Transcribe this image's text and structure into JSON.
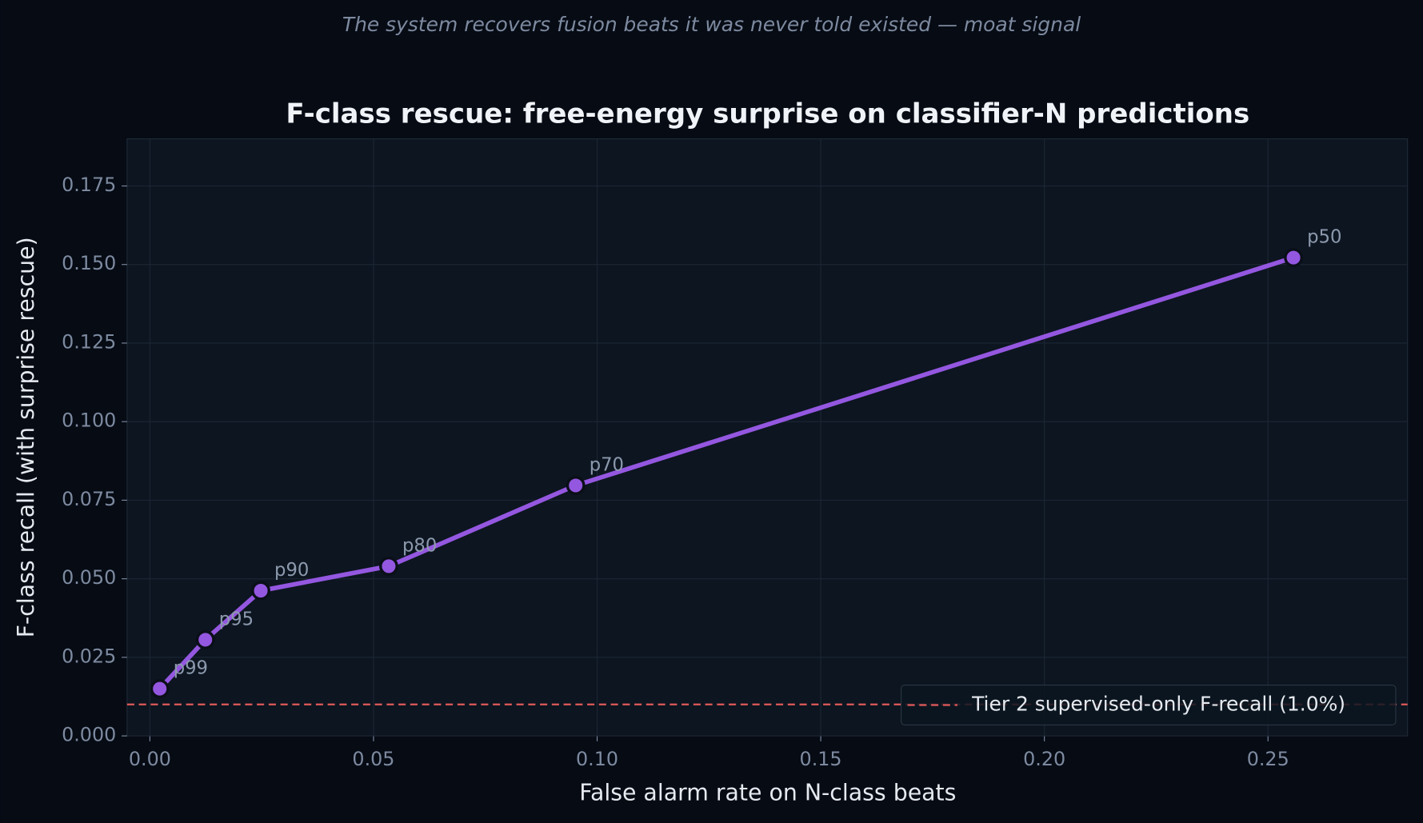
{
  "chart_data": {
    "type": "line",
    "subtitle": "The system recovers fusion beats it was never told existed — moat signal",
    "title": "F-class rescue: free-energy surprise on classifier-N predictions",
    "x_label": "False alarm rate on N-class beats",
    "y_label": "F-class recall (with surprise rescue)",
    "x": [
      0.0022,
      0.0124,
      0.0248,
      0.0534,
      0.0952,
      0.2557
    ],
    "values": [
      0.015,
      0.0306,
      0.0462,
      0.054,
      0.0797,
      0.1522
    ],
    "point_labels": [
      "p99",
      "p95",
      "p90",
      "p80",
      "p70",
      "p50"
    ],
    "color": "#9457e0",
    "reference_line": {
      "value": 0.01,
      "label": "Tier 2 supervised-only F-recall (1.0%)",
      "color": "#e05a5a"
    },
    "legend": "lower right",
    "grid": true,
    "xlim": [
      -0.0051,
      0.2812
    ],
    "ylim": [
      0,
      0.19
    ],
    "xticks": [
      {
        "value": 0,
        "label": "0.00"
      },
      0.05,
      {
        "value": 0.1,
        "label": "0.10"
      },
      0.15,
      {
        "value": 0.2,
        "label": "0.20"
      },
      0.25
    ],
    "yticks": [
      {
        "value": 0,
        "label": "0.000"
      },
      0.025,
      {
        "value": 0.05,
        "label": "0.050"
      },
      0.075,
      {
        "value": 0.1,
        "label": "0.100"
      },
      0.125,
      {
        "value": 0.15,
        "label": "0.150"
      },
      0.175
    ]
  }
}
